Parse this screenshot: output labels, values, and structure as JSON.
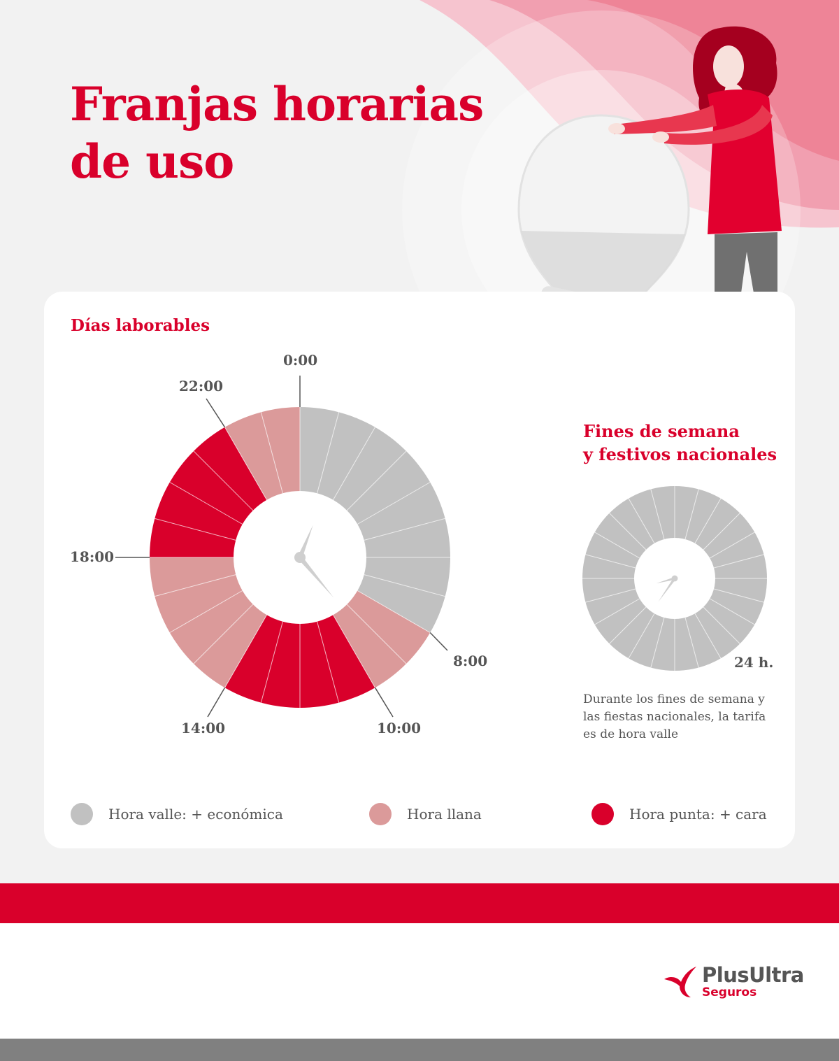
{
  "title_line1": "Franjas horarias",
  "title_line2": "de uso",
  "weekday": {
    "title": "Días laborables",
    "labels": [
      "0:00",
      "8:00",
      "10:00",
      "14:00",
      "18:00",
      "22:00"
    ]
  },
  "weekend": {
    "title_line1": "Fines de semana",
    "title_line2": "y festivos nacionales",
    "hours_label": "24 h.",
    "note": "Durante los fines de semana y las fiestas nacionales, la tarifa es de hora valle"
  },
  "legend": [
    {
      "label": "Hora valle: + económica",
      "color": "#c1c1c1"
    },
    {
      "label": "Hora llana",
      "color": "#db9a9a"
    },
    {
      "label": "Hora punta: + cara",
      "color": "#d9002b"
    }
  ],
  "brand": {
    "name": "PlusUltra",
    "sub": "Seguros"
  },
  "colors": {
    "valle": "#c1c1c1",
    "llana": "#db9a9a",
    "punta": "#d9002b",
    "accent": "#d9002b"
  },
  "chart_data": [
    {
      "type": "pie",
      "title": "Días laborables",
      "categories": [
        "Hora valle: + económica",
        "Hora llana",
        "Hora punta: + cara"
      ],
      "segments": [
        {
          "start": "0:00",
          "end": "8:00",
          "category": "Hora valle: + económica"
        },
        {
          "start": "8:00",
          "end": "10:00",
          "category": "Hora llana"
        },
        {
          "start": "10:00",
          "end": "14:00",
          "category": "Hora punta: + cara"
        },
        {
          "start": "14:00",
          "end": "18:00",
          "category": "Hora llana"
        },
        {
          "start": "18:00",
          "end": "22:00",
          "category": "Hora punta: + cara"
        },
        {
          "start": "22:00",
          "end": "0:00",
          "category": "Hora llana"
        }
      ]
    },
    {
      "type": "pie",
      "title": "Fines de semana y festivos nacionales",
      "segments": [
        {
          "start": "0:00",
          "end": "24:00",
          "category": "Hora valle: + económica"
        }
      ]
    }
  ]
}
